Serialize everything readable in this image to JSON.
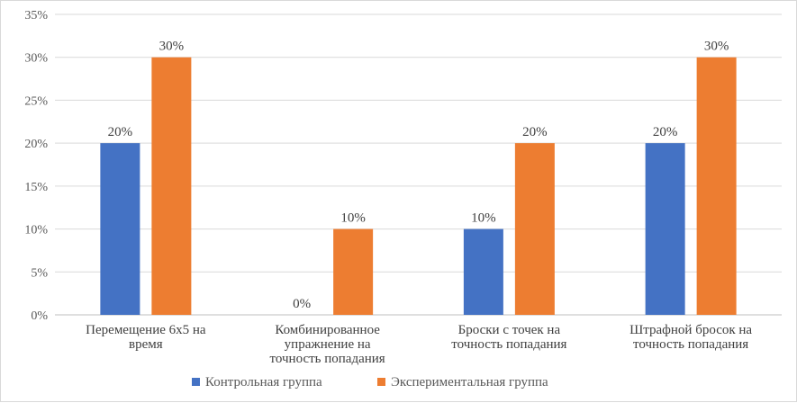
{
  "chart_data": {
    "type": "bar",
    "categories": [
      [
        "Перемещение 6х5 на",
        "время"
      ],
      [
        "Комбинированное",
        "упражнение на",
        "точность попадания"
      ],
      [
        "Броски с точек на",
        "точность попадания"
      ],
      [
        "Штрафной бросок на",
        "точность попадания"
      ]
    ],
    "series": [
      {
        "name": "Контрольная группа",
        "color": "#4472c4",
        "values": [
          20,
          0,
          10,
          20
        ]
      },
      {
        "name": "Экспериментальная группа",
        "color": "#ed7d31",
        "values": [
          30,
          10,
          20,
          30
        ]
      }
    ],
    "value_suffix": "%",
    "ylim": [
      0,
      35
    ],
    "yticks": [
      0,
      5,
      10,
      15,
      20,
      25,
      30,
      35
    ],
    "grid": true,
    "legend_position": "bottom"
  }
}
